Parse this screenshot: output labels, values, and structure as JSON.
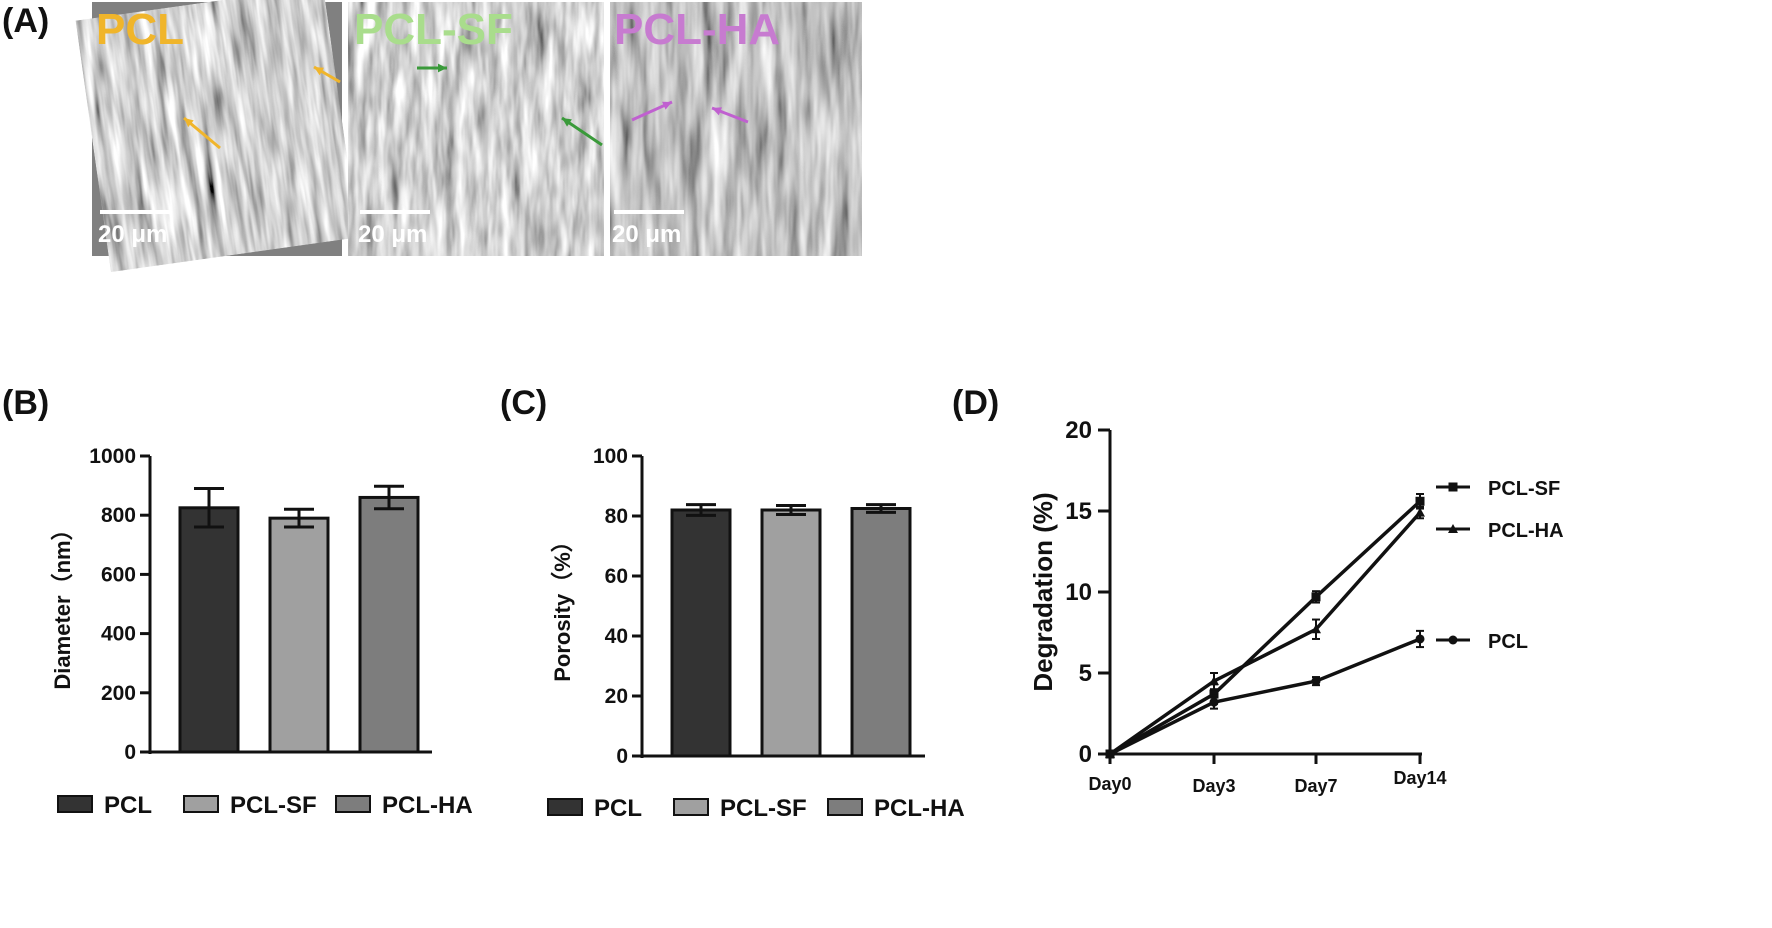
{
  "panels": {
    "a": "(A)",
    "b": "(B)",
    "c": "(C)",
    "d": "(D)"
  },
  "sem": {
    "images": [
      {
        "label": "PCL",
        "label_color": "#f0b52b",
        "arrow_color": "#f0b52b",
        "scale": "20 μm"
      },
      {
        "label": "PCL-SF",
        "label_color": "#a9dd8c",
        "arrow_color": "#3a9a3a",
        "scale": "20 μm"
      },
      {
        "label": "PCL-HA",
        "label_color": "#c77bd0",
        "arrow_color": "#c060d0",
        "scale": "20 μm"
      }
    ]
  },
  "chart_data": [
    {
      "type": "bar",
      "panel": "(B)",
      "categories": [
        "PCL",
        "PCL-SF",
        "PCL-HA"
      ],
      "values": [
        825,
        790,
        860
      ],
      "errors": [
        65,
        30,
        38
      ],
      "colors": [
        "#333333",
        "#a0a0a0",
        "#7d7d7d"
      ],
      "ylabel": "Diameter（nm）",
      "ylim": [
        0,
        1000
      ],
      "yticks": [
        "0",
        "200",
        "400",
        "600",
        "800",
        "1000"
      ],
      "legend": [
        "PCL",
        "PCL-SF",
        "PCL-HA"
      ],
      "legend_position": "bottom"
    },
    {
      "type": "bar",
      "panel": "(C)",
      "categories": [
        "PCL",
        "PCL-SF",
        "PCL-HA"
      ],
      "values": [
        82,
        82,
        82.5
      ],
      "errors": [
        1.8,
        1.5,
        1.3
      ],
      "colors": [
        "#333333",
        "#a0a0a0",
        "#7d7d7d"
      ],
      "ylabel": "Porosity（%）",
      "ylim": [
        0,
        100
      ],
      "yticks": [
        "0",
        "20",
        "40",
        "60",
        "80",
        "100"
      ],
      "legend": [
        "PCL",
        "PCL-SF",
        "PCL-HA"
      ],
      "legend_position": "bottom"
    },
    {
      "type": "line",
      "panel": "(D)",
      "x": [
        "Day0",
        "Day3",
        "Day7",
        "Day14"
      ],
      "series": [
        {
          "name": "PCL-SF",
          "marker": "square",
          "values": [
            0,
            3.7,
            9.7,
            15.6
          ],
          "errors": [
            0,
            0.6,
            0.35,
            0.45
          ]
        },
        {
          "name": "PCL-HA",
          "marker": "triangle",
          "values": [
            0,
            4.5,
            7.7,
            14.9
          ],
          "errors": [
            0,
            0.5,
            0.6,
            0.35
          ]
        },
        {
          "name": "PCL",
          "marker": "circle",
          "values": [
            0,
            3.2,
            4.5,
            7.1
          ],
          "errors": [
            0,
            0.4,
            0.25,
            0.5
          ]
        }
      ],
      "ylabel": "Degradation (%)",
      "ylim": [
        0,
        20
      ],
      "yticks": [
        "0",
        "5",
        "10",
        "15",
        "20"
      ],
      "legend_position": "right"
    }
  ]
}
